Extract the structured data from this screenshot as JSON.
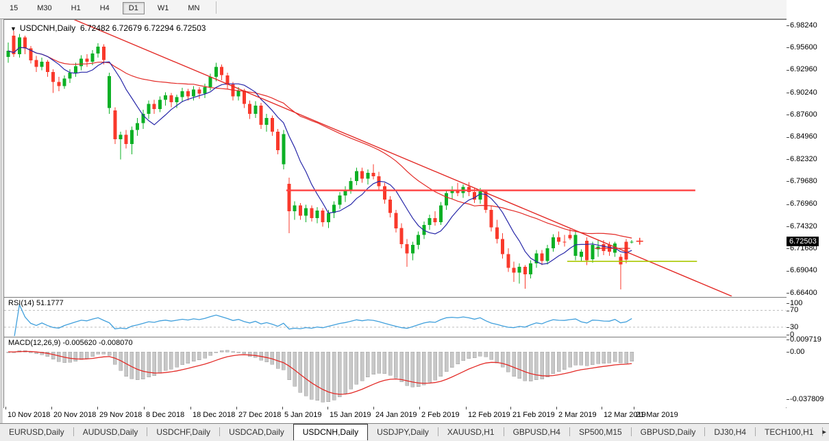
{
  "toolbar": {
    "buttons": [
      {
        "label": "15",
        "active": false
      },
      {
        "label": "M30",
        "active": false
      },
      {
        "label": "H1",
        "active": false
      },
      {
        "label": "H4",
        "active": false
      },
      {
        "label": "D1",
        "active": true
      },
      {
        "label": "W1",
        "active": false
      },
      {
        "label": "MN",
        "active": false
      }
    ]
  },
  "chart": {
    "menu_arrow": "▼",
    "title_symbol": "USDCNH,Daily",
    "title_ohlc": "6.72482 6.72679 6.72294 6.72503"
  },
  "rsi": {
    "label": "RSI(14)",
    "value": "51.1777",
    "axis": [
      "100",
      "70",
      "30",
      "0"
    ],
    "dashed_levels": [
      70,
      30
    ]
  },
  "macd": {
    "label": "MACD(12,26,9)",
    "values": "-0.005620 -0.008070",
    "axis": [
      "0.009719",
      "0.00",
      "-0.037809"
    ]
  },
  "tabs": {
    "items": [
      "EURUSD,Daily",
      "AUDUSD,Daily",
      "USDCHF,Daily",
      "USDCAD,Daily",
      "USDCNH,Daily",
      "USDJPY,Daily",
      "XAUUSD,H1",
      "GBPUSD,H4",
      "SP500,M15",
      "GBPUSD,Daily",
      "DJ30,H4",
      "TECH100,H1",
      "UI"
    ],
    "active_index": 4,
    "scroll_icon": "▸"
  },
  "colors": {
    "up": "#0cb025",
    "down": "#f9392b",
    "ma_fast": "#2626a8",
    "ma_slow": "#e32a26",
    "trendline": "#e32a26",
    "resistance": "#ff4242",
    "support": "#aac800",
    "short_level": "#e32a26",
    "rsi_line": "#3f9fdc",
    "rsi_dash": "#bdbdbd",
    "macd_bar_fill": "#c8c8c8",
    "macd_bar_stroke": "#9f9f9f",
    "macd_signal": "#e32a26",
    "tag_bg": "#000000",
    "tag_text": "#ffffff"
  },
  "chart_data": {
    "type": "candlestick",
    "symbol": "USDCNH",
    "timeframe": "Daily",
    "current_bar": {
      "open": 6.72482,
      "high": 6.72679,
      "low": 6.72294,
      "close": 6.72503
    },
    "current_price_tag": "6.72503",
    "y_axis_labels": [
      "6.98240",
      "6.95600",
      "6.92960",
      "6.90240",
      "6.87600",
      "6.84960",
      "6.82320",
      "6.79680",
      "6.76960",
      "6.74320",
      "6.71680",
      "6.69040",
      "6.66400"
    ],
    "y_range_top": 6.9889,
    "y_range_bottom": 6.6595,
    "x_axis": [
      {
        "label": "10 Nov 2018",
        "i": -0.5
      },
      {
        "label": "20 Nov 2018",
        "i": 7.7
      },
      {
        "label": "29 Nov 2018",
        "i": 15.9
      },
      {
        "label": "8 Dec 2018",
        "i": 24.1
      },
      {
        "label": "18 Dec 2018",
        "i": 32.4
      },
      {
        "label": "27 Dec 2018",
        "i": 40.6
      },
      {
        "label": "5 Jan 2019",
        "i": 48.8
      },
      {
        "label": "15 Jan 2019",
        "i": 56.8
      },
      {
        "label": "24 Jan 2019",
        "i": 65.0
      },
      {
        "label": "2 Feb 2019",
        "i": 73.2
      },
      {
        "label": "12 Feb 2019",
        "i": 81.5
      },
      {
        "label": "21 Feb 2019",
        "i": 89.4
      },
      {
        "label": "2 Mar 2019",
        "i": 97.6
      },
      {
        "label": "12 Mar 2019",
        "i": 105.6
      },
      {
        "label": "21 Mar 2019",
        "i": 111.3
      }
    ],
    "indicators": {
      "ma_fast_period": 8,
      "ma_slow_period": 34,
      "rsi_period": 14,
      "macd": [
        12,
        26,
        9
      ]
    },
    "objects": {
      "trendline": {
        "i1": 11.6,
        "p1": 6.9897,
        "i2": 128.8,
        "p2": 6.66
      },
      "resistance": {
        "price": 6.786,
        "i1": 49.5,
        "i2": 122.3
      },
      "support_olive": {
        "price": 6.7015,
        "i1": 99.5,
        "i2": 122.6
      },
      "short_red_level": {
        "price": 6.717,
        "i1": 104.4,
        "i2": 110.7
      },
      "price_cross_marker": {
        "i": 112.4,
        "price": 6.7255
      }
    },
    "candles": [
      [
        6.945,
        6.962,
        6.938,
        6.952
      ],
      [
        6.97,
        6.976,
        6.945,
        6.948
      ],
      [
        6.948,
        6.972,
        6.944,
        6.968
      ],
      [
        6.968,
        6.97,
        6.948,
        6.955
      ],
      [
        6.955,
        6.958,
        6.937,
        6.941
      ],
      [
        6.941,
        6.946,
        6.927,
        6.933
      ],
      [
        6.933,
        6.944,
        6.929,
        6.939
      ],
      [
        6.939,
        6.941,
        6.921,
        6.927
      ],
      [
        6.927,
        6.93,
        6.902,
        6.915
      ],
      [
        6.915,
        6.921,
        6.904,
        6.91
      ],
      [
        6.91,
        6.923,
        6.907,
        6.919
      ],
      [
        6.919,
        6.93,
        6.914,
        6.926
      ],
      [
        6.926,
        6.938,
        6.921,
        6.934
      ],
      [
        6.934,
        6.947,
        6.929,
        6.943
      ],
      [
        6.943,
        6.948,
        6.933,
        6.939
      ],
      [
        6.939,
        6.953,
        6.935,
        6.949
      ],
      [
        6.949,
        6.961,
        6.944,
        6.957
      ],
      [
        6.957,
        6.96,
        6.936,
        6.941
      ],
      [
        6.884,
        6.926,
        6.877,
        6.922
      ],
      [
        6.881,
        6.885,
        6.841,
        6.847
      ],
      [
        6.847,
        6.856,
        6.823,
        6.852
      ],
      [
        6.852,
        6.858,
        6.836,
        6.841
      ],
      [
        6.841,
        6.862,
        6.829,
        6.858
      ],
      [
        6.858,
        6.872,
        6.851,
        6.866
      ],
      [
        6.866,
        6.882,
        6.859,
        6.877
      ],
      [
        6.877,
        6.893,
        6.871,
        6.889
      ],
      [
        6.889,
        6.894,
        6.877,
        6.883
      ],
      [
        6.883,
        6.898,
        6.879,
        6.894
      ],
      [
        6.894,
        6.903,
        6.887,
        6.899
      ],
      [
        6.899,
        6.902,
        6.885,
        6.891
      ],
      [
        6.891,
        6.9,
        6.884,
        6.897
      ],
      [
        6.897,
        6.908,
        6.891,
        6.904
      ],
      [
        6.904,
        6.907,
        6.893,
        6.898
      ],
      [
        6.898,
        6.91,
        6.893,
        6.906
      ],
      [
        6.906,
        6.909,
        6.895,
        6.901
      ],
      [
        6.901,
        6.913,
        6.896,
        6.909
      ],
      [
        6.909,
        6.925,
        6.905,
        6.921
      ],
      [
        6.921,
        6.938,
        6.916,
        6.933
      ],
      [
        6.933,
        6.936,
        6.917,
        6.923
      ],
      [
        6.923,
        6.926,
        6.907,
        6.912
      ],
      [
        6.912,
        6.915,
        6.893,
        6.898
      ],
      [
        6.898,
        6.909,
        6.893,
        6.905
      ],
      [
        6.905,
        6.907,
        6.884,
        6.889
      ],
      [
        6.889,
        6.893,
        6.871,
        6.877
      ],
      [
        6.877,
        6.892,
        6.872,
        6.887
      ],
      [
        6.887,
        6.89,
        6.859,
        6.864
      ],
      [
        6.864,
        6.877,
        6.856,
        6.872
      ],
      [
        6.872,
        6.875,
        6.851,
        6.856
      ],
      [
        6.856,
        6.859,
        6.829,
        6.834
      ],
      [
        6.817,
        6.858,
        6.811,
        6.853
      ],
      [
        6.794,
        6.801,
        6.735,
        6.761
      ],
      [
        6.761,
        6.773,
        6.751,
        6.768
      ],
      [
        6.768,
        6.771,
        6.751,
        6.756
      ],
      [
        6.756,
        6.769,
        6.748,
        6.765
      ],
      [
        6.765,
        6.768,
        6.749,
        6.753
      ],
      [
        6.753,
        6.766,
        6.747,
        6.762
      ],
      [
        6.762,
        6.765,
        6.743,
        6.748
      ],
      [
        6.748,
        6.763,
        6.741,
        6.759
      ],
      [
        6.759,
        6.773,
        6.753,
        6.769
      ],
      [
        6.769,
        6.784,
        6.764,
        6.78
      ],
      [
        6.78,
        6.791,
        6.772,
        6.787
      ],
      [
        6.787,
        6.801,
        6.782,
        6.797
      ],
      [
        6.797,
        6.813,
        6.792,
        6.809
      ],
      [
        6.809,
        6.813,
        6.795,
        6.8
      ],
      [
        6.8,
        6.811,
        6.793,
        6.807
      ],
      [
        6.807,
        6.817,
        6.799,
        6.803
      ],
      [
        6.803,
        6.808,
        6.787,
        6.791
      ],
      [
        6.791,
        6.795,
        6.77,
        6.775
      ],
      [
        6.775,
        6.779,
        6.754,
        6.759
      ],
      [
        6.759,
        6.763,
        6.736,
        6.741
      ],
      [
        6.741,
        6.747,
        6.717,
        6.722
      ],
      [
        6.722,
        6.728,
        6.695,
        6.711
      ],
      [
        6.711,
        6.725,
        6.703,
        6.721
      ],
      [
        6.721,
        6.737,
        6.716,
        6.733
      ],
      [
        6.733,
        6.749,
        6.728,
        6.745
      ],
      [
        6.745,
        6.757,
        6.739,
        6.753
      ],
      [
        6.753,
        6.761,
        6.744,
        6.748
      ],
      [
        6.748,
        6.772,
        6.745,
        6.768
      ],
      [
        6.768,
        6.787,
        6.763,
        6.783
      ],
      [
        6.783,
        6.791,
        6.776,
        6.787
      ],
      [
        6.787,
        6.795,
        6.779,
        6.783
      ],
      [
        6.783,
        6.793,
        6.777,
        6.79
      ],
      [
        6.79,
        6.796,
        6.779,
        6.784
      ],
      [
        6.784,
        6.789,
        6.771,
        6.775
      ],
      [
        6.775,
        6.789,
        6.77,
        6.785
      ],
      [
        6.785,
        6.787,
        6.759,
        6.763
      ],
      [
        6.763,
        6.768,
        6.737,
        6.742
      ],
      [
        6.742,
        6.751,
        6.723,
        6.728
      ],
      [
        6.728,
        6.735,
        6.705,
        6.71
      ],
      [
        6.71,
        6.717,
        6.689,
        6.694
      ],
      [
        6.694,
        6.701,
        6.677,
        6.688
      ],
      [
        6.688,
        6.699,
        6.675,
        6.695
      ],
      [
        6.695,
        6.697,
        6.669,
        6.686
      ],
      [
        6.686,
        6.703,
        6.681,
        6.699
      ],
      [
        6.699,
        6.715,
        6.694,
        6.711
      ],
      [
        6.711,
        6.715,
        6.697,
        6.702
      ],
      [
        6.702,
        6.721,
        6.698,
        6.717
      ],
      [
        6.717,
        6.734,
        6.713,
        6.73
      ],
      [
        6.73,
        6.737,
        6.721,
        6.725
      ],
      [
        6.725,
        6.733,
        6.719,
        6.724
      ],
      [
        6.733,
        6.74,
        6.727,
        6.729
      ],
      [
        6.708,
        6.737,
        6.703,
        6.733
      ],
      [
        6.707,
        6.716,
        6.702,
        6.713
      ],
      [
        6.726,
        6.73,
        6.697,
        6.703
      ],
      [
        6.704,
        6.725,
        6.7,
        6.721
      ],
      [
        6.716,
        6.727,
        6.707,
        6.719
      ],
      [
        6.722,
        6.727,
        6.709,
        6.714
      ],
      [
        6.721,
        6.725,
        6.708,
        6.713
      ],
      [
        6.712,
        6.725,
        6.707,
        6.723
      ],
      [
        6.707,
        6.71,
        6.668,
        6.698
      ],
      [
        6.725,
        6.728,
        6.699,
        6.7035
      ],
      [
        6.72482,
        6.72679,
        6.72294,
        6.72503
      ]
    ]
  }
}
